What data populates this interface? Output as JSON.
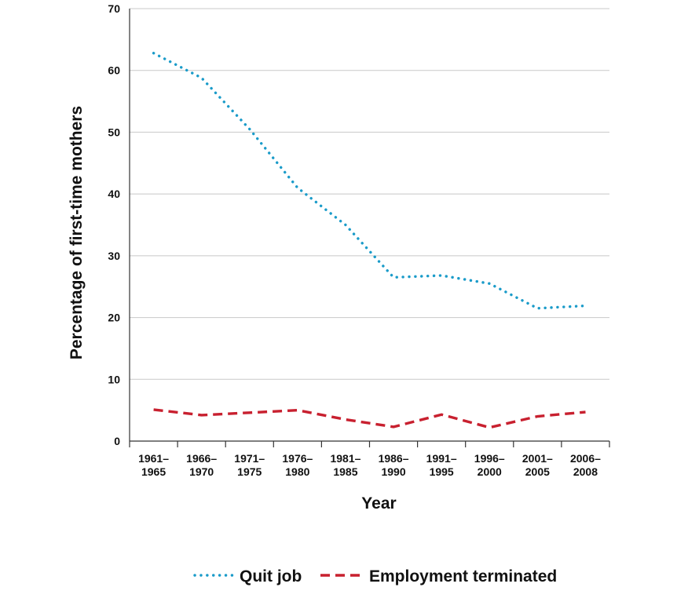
{
  "chart_data": {
    "type": "line",
    "title": "",
    "xlabel": "Year",
    "ylabel": "Percentage of first-time mothers",
    "ylim": [
      0,
      70
    ],
    "yticks": [
      0,
      10,
      20,
      30,
      40,
      50,
      60,
      70
    ],
    "grid": true,
    "legend_position": "bottom",
    "categories": [
      [
        "1961–",
        "1965"
      ],
      [
        "1966–",
        "1970"
      ],
      [
        "1971–",
        "1975"
      ],
      [
        "1976–",
        "1980"
      ],
      [
        "1981–",
        "1985"
      ],
      [
        "1986–",
        "1990"
      ],
      [
        "1991–",
        "1995"
      ],
      [
        "1996–",
        "2000"
      ],
      [
        "2001–",
        "2005"
      ],
      [
        "2006–",
        "2008"
      ]
    ],
    "series": [
      {
        "name": "Quit job",
        "color": "#1a9bc9",
        "style": "dotted",
        "values": [
          62.8,
          58.8,
          50.5,
          41.0,
          35.0,
          26.5,
          26.8,
          25.5,
          21.5,
          21.9
        ]
      },
      {
        "name": "Employment terminated",
        "color": "#c8202f",
        "style": "dashed",
        "values": [
          5.1,
          4.2,
          4.6,
          5.0,
          3.5,
          2.3,
          4.3,
          2.2,
          4.0,
          4.7
        ]
      }
    ]
  }
}
